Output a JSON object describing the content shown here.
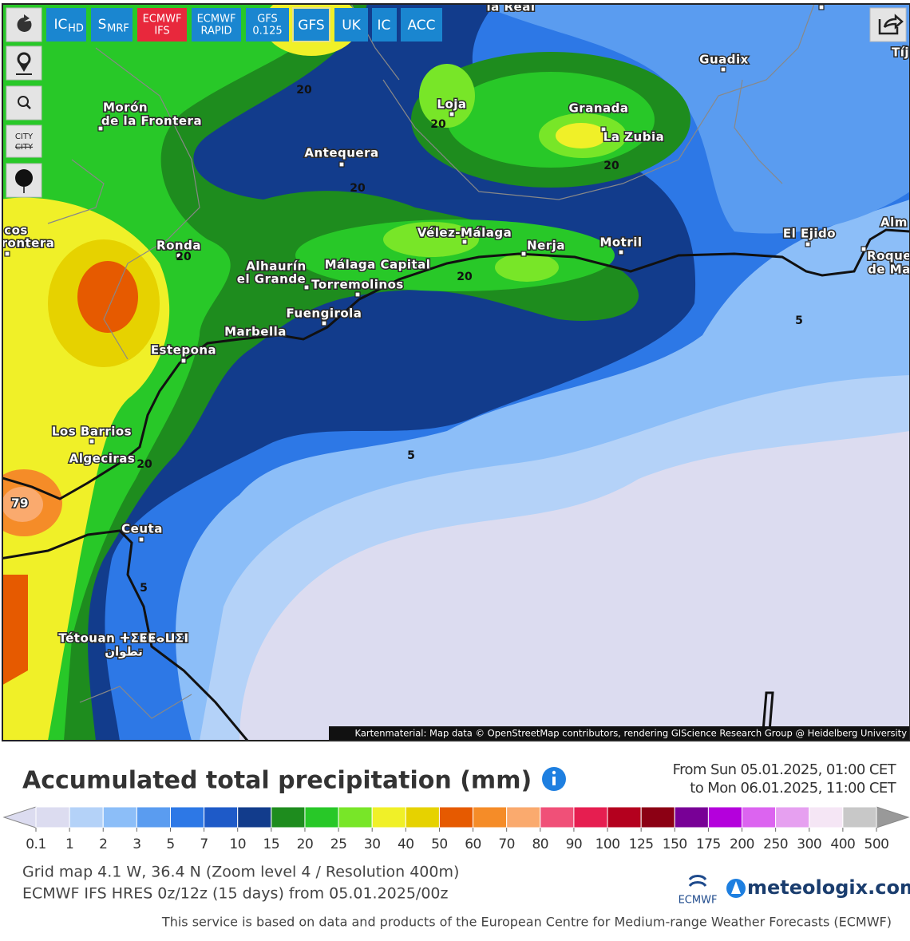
{
  "toolbar": {
    "buttons": [
      {
        "text": "IC",
        "sub": "HD"
      },
      {
        "text": "S",
        "sub": "MRF"
      },
      {
        "lines": [
          "ECMWF",
          "IFS"
        ]
      },
      {
        "lines": [
          "ECMWF",
          "RAPID"
        ]
      },
      {
        "lines": [
          "GFS",
          "0.125"
        ]
      },
      {
        "text": "GFS"
      },
      {
        "text": "UK"
      },
      {
        "text": "IC"
      },
      {
        "text": "ACC"
      }
    ],
    "city": "CITY",
    "city_off": "CITY"
  },
  "map": {
    "places": [
      "la Real",
      "Guadix",
      "Tíj",
      "Morón",
      "de la Frontera",
      "Loja",
      "Granada",
      "La Zubia",
      "Antequera",
      "Ronda",
      "Vélez-Málaga",
      "Nerja",
      "Motril",
      "El Ejido",
      "Alm",
      "Roque",
      "de Ma",
      "Alhaurín",
      "el Grande",
      "Málaga Capital",
      "Torremolinos",
      "Fuengirola",
      "Marbella",
      "Estepona",
      "Los Barrios",
      "Algeciras",
      "Ceuta",
      "Tétouan ⵜⵉⵟⵟⴰⵡⵉⵏ",
      "تطوان",
      "cos",
      "rontera"
    ],
    "contour_labels": [
      20,
      20,
      20,
      20,
      20,
      20,
      20,
      5,
      5,
      5,
      79
    ],
    "attribution": "Kartenmaterial: Map data © OpenStreetMap contributors, rendering GIScience Research Group @ Heidelberg University"
  },
  "title": "Accumulated total precipitation (mm)",
  "period": [
    "From Sun 05.01.2025, 01:00 CET",
    "to Mon 06.01.2025, 11:00 CET"
  ],
  "legend": {
    "colors": [
      "#dcdcf0",
      "#b4d2f8",
      "#8cbef8",
      "#5a9cf0",
      "#2d78e6",
      "#1e5ac8",
      "#123c8c",
      "#1e8c1e",
      "#28c828",
      "#78e628",
      "#f0f028",
      "#e6d200",
      "#e65a00",
      "#f58c28",
      "#faaa6e",
      "#f05078",
      "#e61e50",
      "#b4001e",
      "#8c0014",
      "#780096",
      "#b400dc",
      "#dc64f0",
      "#e6a0f0",
      "#f5e6f5",
      "#c8c8c8"
    ],
    "labels": [
      "0.1",
      "1",
      "2",
      "3",
      "5",
      "7",
      "10",
      "15",
      "20",
      "25",
      "30",
      "40",
      "50",
      "60",
      "70",
      "80",
      "90",
      "100",
      "125",
      "150",
      "175",
      "200",
      "250",
      "300",
      "400",
      "500"
    ]
  },
  "info": [
    "Grid map 4.1 W, 36.4 N (Zoom level 4 / Resolution 400m)",
    "ECMWF IFS HRES 0z/12z (15 days) from 05.01.2025/00z"
  ],
  "logos": {
    "ecmwf": "ECMWF",
    "meteologix": "meteologix.com"
  },
  "footer": "This service is based on data and products of the European Centre for Medium-range Weather Forecasts (ECMWF)"
}
